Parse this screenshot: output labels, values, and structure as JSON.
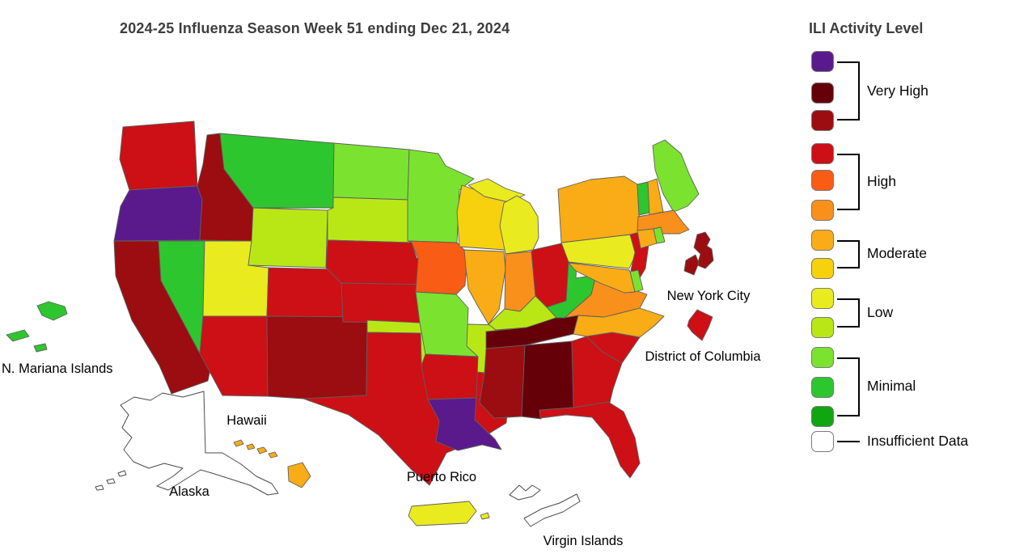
{
  "title": "2024-25 Influenza Season Week 51 ending Dec 21, 2024",
  "legend": {
    "title": "ILI Activity Level",
    "levels_order": [
      "13",
      "12",
      "11",
      "10",
      "9",
      "8",
      "7",
      "6",
      "5",
      "4",
      "3",
      "2",
      "1",
      "insufficient"
    ],
    "groups": [
      {
        "label": "Very High",
        "levels": [
          "13",
          "12",
          "11"
        ]
      },
      {
        "label": "High",
        "levels": [
          "10",
          "9",
          "8"
        ]
      },
      {
        "label": "Moderate",
        "levels": [
          "7",
          "6"
        ]
      },
      {
        "label": "Low",
        "levels": [
          "5",
          "4"
        ]
      },
      {
        "label": "Minimal",
        "levels": [
          "3",
          "2",
          "1"
        ]
      },
      {
        "label": "Insufficient Data",
        "levels": [
          "insufficient"
        ]
      }
    ],
    "labels": {
      "very_high": "Very High",
      "high": "High",
      "moderate": "Moderate",
      "low": "Low",
      "minimal": "Minimal",
      "insufficient": "Insufficient Data"
    }
  },
  "palette": {
    "13": "#5A1A8C",
    "12": "#650009",
    "11": "#9B0D10",
    "10": "#CC1016",
    "9": "#F85C15",
    "8": "#F9901B",
    "7": "#F9AC15",
    "6": "#F7D00E",
    "5": "#E9EB1E",
    "4": "#B9E716",
    "3": "#7BE32F",
    "2": "#2EC62E",
    "1": "#12A512",
    "insufficient": "#FFFFFF"
  },
  "map": {
    "labels": {
      "new_york_city": "New York City",
      "district_of_columbia": "District of Columbia",
      "hawaii": "Hawaii",
      "alaska": "Alaska",
      "puerto_rico": "Puerto Rico",
      "virgin_islands": "Virgin Islands",
      "n_mariana_islands": "N. Mariana Islands"
    },
    "states": {
      "WA": {
        "name": "Washington",
        "level": "10"
      },
      "OR": {
        "name": "Oregon",
        "level": "13"
      },
      "CA": {
        "name": "California",
        "level": "11"
      },
      "NV": {
        "name": "Nevada",
        "level": "2"
      },
      "ID": {
        "name": "Idaho",
        "level": "11"
      },
      "MT": {
        "name": "Montana",
        "level": "2"
      },
      "WY": {
        "name": "Wyoming",
        "level": "4"
      },
      "UT": {
        "name": "Utah",
        "level": "5"
      },
      "CO": {
        "name": "Colorado",
        "level": "10"
      },
      "AZ": {
        "name": "Arizona",
        "level": "10"
      },
      "NM": {
        "name": "New Mexico",
        "level": "11"
      },
      "ND": {
        "name": "North Dakota",
        "level": "3"
      },
      "SD": {
        "name": "South Dakota",
        "level": "4"
      },
      "NE": {
        "name": "Nebraska",
        "level": "10"
      },
      "KS": {
        "name": "Kansas",
        "level": "10"
      },
      "OK": {
        "name": "Oklahoma",
        "level": "4"
      },
      "TX": {
        "name": "Texas",
        "level": "10"
      },
      "MN": {
        "name": "Minnesota",
        "level": "3"
      },
      "IA": {
        "name": "Iowa",
        "level": "9"
      },
      "MO": {
        "name": "Missouri",
        "level": "3"
      },
      "AR": {
        "name": "Arkansas",
        "level": "10"
      },
      "LA": {
        "name": "Louisiana",
        "level": "13"
      },
      "WI": {
        "name": "Wisconsin",
        "level": "6"
      },
      "IL": {
        "name": "Illinois",
        "level": "7"
      },
      "IN": {
        "name": "Indiana",
        "level": "8"
      },
      "MI": {
        "name": "Michigan",
        "level": "5"
      },
      "OH": {
        "name": "Ohio",
        "level": "10"
      },
      "KY": {
        "name": "Kentucky",
        "level": "4"
      },
      "TN": {
        "name": "Tennessee",
        "level": "12"
      },
      "MS": {
        "name": "Mississippi",
        "level": "11"
      },
      "AL": {
        "name": "Alabama",
        "level": "12"
      },
      "GA": {
        "name": "Georgia",
        "level": "10"
      },
      "FL": {
        "name": "Florida",
        "level": "10"
      },
      "SC": {
        "name": "South Carolina",
        "level": "10"
      },
      "NC": {
        "name": "North Carolina",
        "level": "7"
      },
      "VA": {
        "name": "Virginia",
        "level": "8"
      },
      "WV": {
        "name": "West Virginia",
        "level": "2"
      },
      "PA": {
        "name": "Pennsylvania",
        "level": "5"
      },
      "NY": {
        "name": "New York",
        "level": "7"
      },
      "NJ": {
        "name": "New Jersey",
        "level": "10"
      },
      "DE": {
        "name": "Delaware",
        "level": "3"
      },
      "MD": {
        "name": "Maryland",
        "level": "7"
      },
      "VT": {
        "name": "Vermont",
        "level": "2"
      },
      "NH": {
        "name": "New Hampshire",
        "level": "7"
      },
      "MA": {
        "name": "Massachusetts",
        "level": "8"
      },
      "CT": {
        "name": "Connecticut",
        "level": "7"
      },
      "RI": {
        "name": "Rhode Island",
        "level": "3"
      },
      "ME": {
        "name": "Maine",
        "level": "3"
      },
      "DC": {
        "name": "District of Columbia",
        "level": "10"
      },
      "NYC": {
        "name": "New York City",
        "level": "11"
      },
      "AK": {
        "name": "Alaska",
        "level": "insufficient"
      },
      "HI": {
        "name": "Hawaii",
        "level": "7"
      },
      "PR": {
        "name": "Puerto Rico",
        "level": "5"
      },
      "VI": {
        "name": "Virgin Islands",
        "level": "insufficient"
      },
      "MP": {
        "name": "N. Mariana Islands",
        "level": "2"
      }
    }
  },
  "chart_data": {
    "type": "heatmap",
    "subtype": "us-choropleth",
    "title": "2024-25 Influenza Season Week 51 ending Dec 21, 2024",
    "legend_title": "ILI Activity Level",
    "legend_position": "right",
    "level_groups": {
      "Very High": [
        11,
        12,
        13
      ],
      "High": [
        8,
        9,
        10
      ],
      "Moderate": [
        6,
        7
      ],
      "Low": [
        4,
        5
      ],
      "Minimal": [
        1,
        2,
        3
      ],
      "Insufficient Data": null
    },
    "jurisdiction_levels": {
      "Washington": 10,
      "Oregon": 13,
      "California": 11,
      "Nevada": 2,
      "Idaho": 11,
      "Montana": 2,
      "Wyoming": 4,
      "Utah": 5,
      "Colorado": 10,
      "Arizona": 10,
      "New Mexico": 11,
      "North Dakota": 3,
      "South Dakota": 4,
      "Nebraska": 10,
      "Kansas": 10,
      "Oklahoma": 4,
      "Texas": 10,
      "Minnesota": 3,
      "Iowa": 9,
      "Missouri": 3,
      "Arkansas": 10,
      "Louisiana": 13,
      "Wisconsin": 6,
      "Illinois": 7,
      "Indiana": 8,
      "Michigan": 5,
      "Ohio": 10,
      "Kentucky": 4,
      "Tennessee": 12,
      "Mississippi": 11,
      "Alabama": 12,
      "Georgia": 10,
      "Florida": 10,
      "South Carolina": 10,
      "North Carolina": 7,
      "Virginia": 8,
      "West Virginia": 2,
      "Pennsylvania": 5,
      "New York": 7,
      "New Jersey": 10,
      "Delaware": 3,
      "Maryland": 7,
      "Vermont": 2,
      "New Hampshire": 7,
      "Massachusetts": 8,
      "Connecticut": 7,
      "Rhode Island": 3,
      "Maine": 3,
      "District of Columbia": 10,
      "New York City": 11,
      "Alaska": "Insufficient Data",
      "Hawaii": 7,
      "Puerto Rico": 5,
      "Virgin Islands": "Insufficient Data",
      "N. Mariana Islands": 2
    }
  }
}
